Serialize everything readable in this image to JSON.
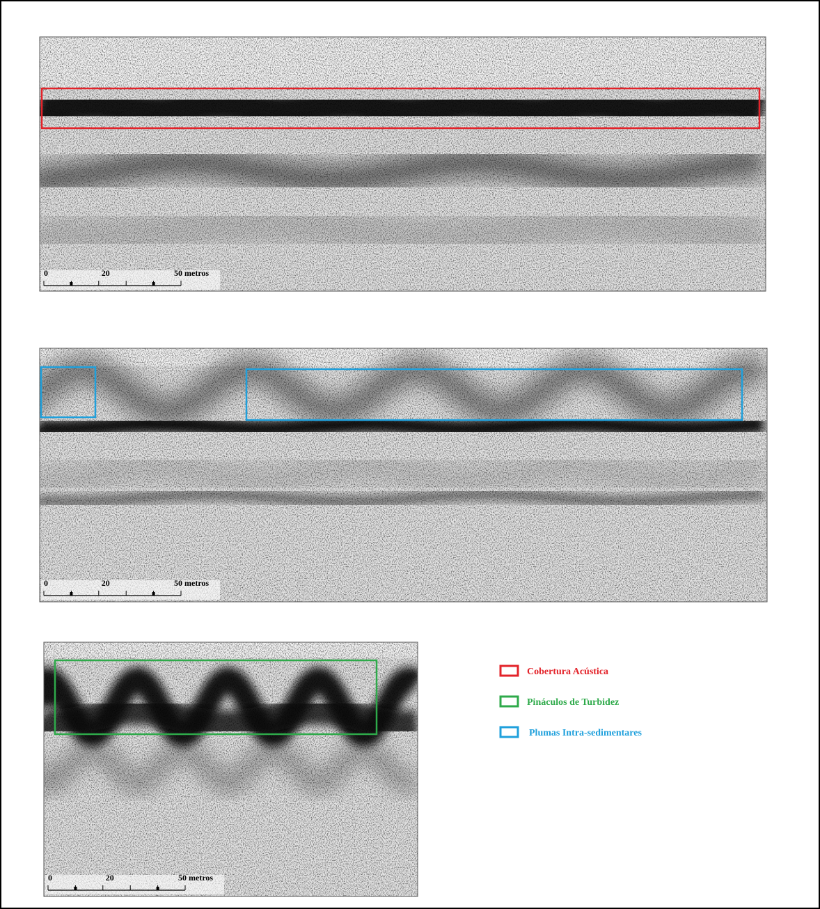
{
  "panels": [
    {
      "scale": {
        "labels": [
          "0",
          "20",
          "50 metros"
        ]
      }
    },
    {
      "scale": {
        "labels": [
          "0",
          "20",
          "50 metros"
        ]
      }
    },
    {
      "scale": {
        "labels": [
          "0",
          "20",
          "50 metros"
        ]
      }
    }
  ],
  "legend": [
    {
      "label": "Cobertura Acústica",
      "color": "#e3232a"
    },
    {
      "label": "Pináculos de Turbidez",
      "color": "#2eaa4a"
    },
    {
      "label": "Plumas Intra-sedimentares",
      "color": "#1fa0dc"
    }
  ]
}
